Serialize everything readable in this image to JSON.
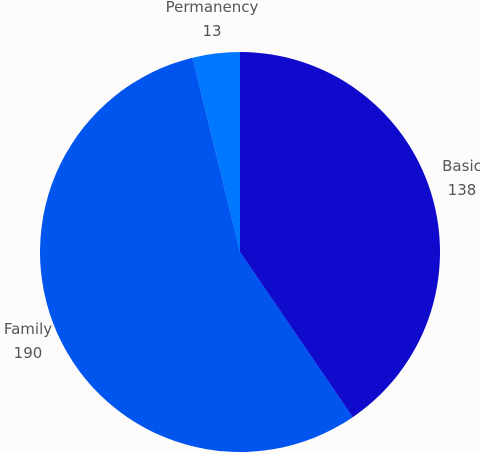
{
  "chart_data": {
    "type": "pie",
    "title": "",
    "slices": [
      {
        "label": "Basic",
        "value": 138,
        "color": "#100acd"
      },
      {
        "label": "Family",
        "value": 190,
        "color": "#0055ee"
      },
      {
        "label": "Permanency",
        "value": 13,
        "color": "#0077ff"
      }
    ],
    "start": "12 o'clock",
    "direction": "clockwise",
    "legend": "none",
    "label_placement": "outside",
    "background": "#fdfcfa"
  }
}
